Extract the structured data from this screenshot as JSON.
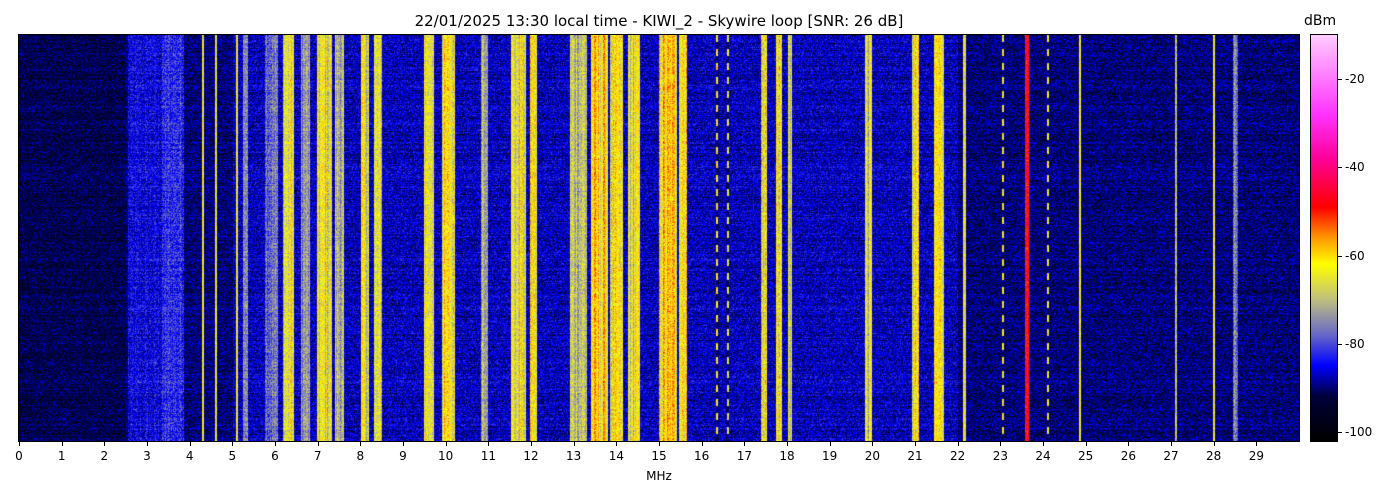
{
  "chart_data": {
    "type": "heatmap",
    "title": "22/01/2025 13:30 local time - KIWI_2 - Skywire loop [SNR: 26 dB]",
    "xlabel": "MHz",
    "ylabel": "",
    "xlim": [
      0,
      30
    ],
    "x_ticks": [
      "0",
      "1",
      "2",
      "3",
      "4",
      "5",
      "6",
      "7",
      "8",
      "9",
      "10",
      "11",
      "12",
      "13",
      "14",
      "15",
      "16",
      "17",
      "18",
      "19",
      "20",
      "21",
      "22",
      "23",
      "24",
      "25",
      "26",
      "27",
      "28",
      "29"
    ],
    "colorbar": {
      "label": "dBm",
      "range": [
        -102,
        -10
      ],
      "ticks": [
        "-20",
        "-40",
        "-60",
        "-80",
        "-100"
      ],
      "tick_values": [
        -20,
        -40,
        -60,
        -80,
        -100
      ],
      "colormap_stops": [
        {
          "value": -102,
          "color": "#000000"
        },
        {
          "value": -92,
          "color": "#00003a"
        },
        {
          "value": -85,
          "color": "#0000ff"
        },
        {
          "value": -78,
          "color": "#6868c8"
        },
        {
          "value": -70,
          "color": "#c0c080"
        },
        {
          "value": -62,
          "color": "#ffff00"
        },
        {
          "value": -56,
          "color": "#ff9900"
        },
        {
          "value": -49,
          "color": "#ff0000"
        },
        {
          "value": -38,
          "color": "#ff0099"
        },
        {
          "value": -28,
          "color": "#ff33ff"
        },
        {
          "value": -10,
          "color": "#ffccff"
        }
      ]
    },
    "noise_floor_dbm": -90,
    "signals": [
      {
        "mhz": 3.0,
        "width": 0.9,
        "level": -84,
        "shape": "band"
      },
      {
        "mhz": 3.6,
        "width": 0.5,
        "level": -80,
        "shape": "band"
      },
      {
        "mhz": 4.3,
        "width": 0.05,
        "level": -64,
        "shape": "line"
      },
      {
        "mhz": 4.6,
        "width": 0.05,
        "level": -66,
        "shape": "line"
      },
      {
        "mhz": 5.1,
        "width": 0.05,
        "level": -64,
        "shape": "line"
      },
      {
        "mhz": 5.3,
        "width": 0.1,
        "level": -75,
        "shape": "line"
      },
      {
        "mhz": 5.9,
        "width": 0.3,
        "level": -74,
        "shape": "band"
      },
      {
        "mhz": 6.3,
        "width": 0.25,
        "level": -60,
        "shape": "band"
      },
      {
        "mhz": 6.7,
        "width": 0.2,
        "level": -70,
        "shape": "band"
      },
      {
        "mhz": 7.15,
        "width": 0.35,
        "level": -60,
        "shape": "band"
      },
      {
        "mhz": 7.5,
        "width": 0.2,
        "level": -66,
        "shape": "band"
      },
      {
        "mhz": 8.1,
        "width": 0.2,
        "level": -60,
        "shape": "band"
      },
      {
        "mhz": 8.4,
        "width": 0.2,
        "level": -62,
        "shape": "band"
      },
      {
        "mhz": 9.6,
        "width": 0.25,
        "level": -58,
        "shape": "band"
      },
      {
        "mhz": 10.05,
        "width": 0.3,
        "level": -57,
        "shape": "band"
      },
      {
        "mhz": 10.9,
        "width": 0.15,
        "level": -64,
        "shape": "band"
      },
      {
        "mhz": 11.7,
        "width": 0.35,
        "level": -60,
        "shape": "band"
      },
      {
        "mhz": 12.05,
        "width": 0.15,
        "level": -58,
        "shape": "band"
      },
      {
        "mhz": 13.1,
        "width": 0.4,
        "level": -64,
        "shape": "band"
      },
      {
        "mhz": 13.6,
        "width": 0.4,
        "level": -55,
        "shape": "band"
      },
      {
        "mhz": 14.0,
        "width": 0.3,
        "level": -58,
        "shape": "band"
      },
      {
        "mhz": 14.4,
        "width": 0.3,
        "level": -60,
        "shape": "band"
      },
      {
        "mhz": 15.2,
        "width": 0.4,
        "level": -54,
        "shape": "band"
      },
      {
        "mhz": 15.55,
        "width": 0.2,
        "level": -52,
        "shape": "band"
      },
      {
        "mhz": 16.35,
        "width": 0.05,
        "level": -62,
        "shape": "dashed"
      },
      {
        "mhz": 16.6,
        "width": 0.05,
        "level": -66,
        "shape": "dashed"
      },
      {
        "mhz": 17.45,
        "width": 0.15,
        "level": -55,
        "shape": "band"
      },
      {
        "mhz": 17.8,
        "width": 0.15,
        "level": -56,
        "shape": "band"
      },
      {
        "mhz": 18.05,
        "width": 0.1,
        "level": -60,
        "shape": "band"
      },
      {
        "mhz": 19.9,
        "width": 0.15,
        "level": -62,
        "shape": "band"
      },
      {
        "mhz": 21.0,
        "width": 0.15,
        "level": -58,
        "shape": "band"
      },
      {
        "mhz": 21.55,
        "width": 0.25,
        "level": -56,
        "shape": "band"
      },
      {
        "mhz": 22.15,
        "width": 0.05,
        "level": -66,
        "shape": "line"
      },
      {
        "mhz": 23.05,
        "width": 0.05,
        "level": -64,
        "shape": "dashed"
      },
      {
        "mhz": 23.62,
        "width": 0.1,
        "level": -48,
        "shape": "line"
      },
      {
        "mhz": 24.1,
        "width": 0.05,
        "level": -64,
        "shape": "dashed"
      },
      {
        "mhz": 24.85,
        "width": 0.05,
        "level": -64,
        "shape": "line"
      },
      {
        "mhz": 27.1,
        "width": 0.05,
        "level": -70,
        "shape": "line"
      },
      {
        "mhz": 28.0,
        "width": 0.05,
        "level": -64,
        "shape": "line"
      },
      {
        "mhz": 28.5,
        "width": 0.1,
        "level": -72,
        "shape": "band"
      }
    ]
  }
}
